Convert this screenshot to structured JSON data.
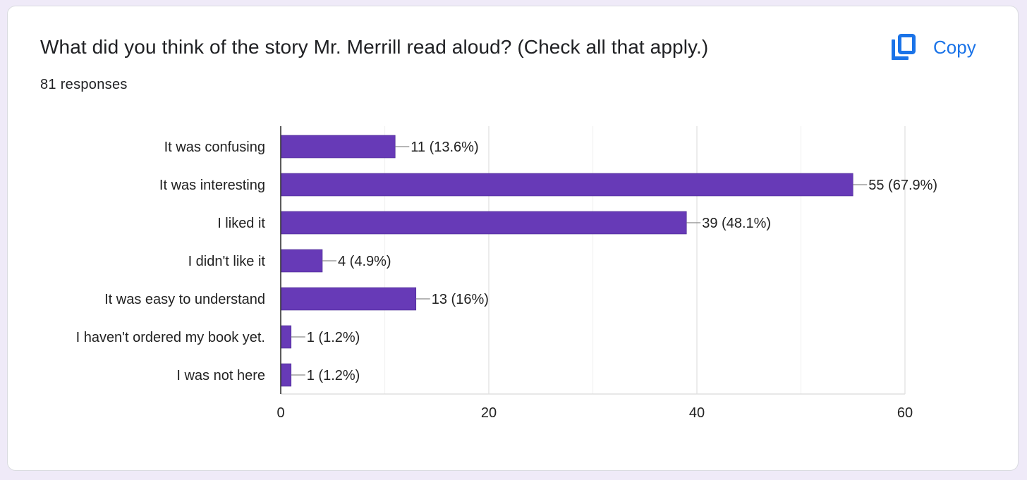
{
  "card": {
    "title": "What did you think of the story Mr. Merrill read aloud? (Check all that apply.)",
    "responses_label": "81 responses",
    "copy_label": "Copy"
  },
  "colors": {
    "bar": "#673ab7",
    "accent": "#1a73e8"
  },
  "icons": {
    "copy": "copy-icon"
  },
  "chart_data": {
    "type": "bar",
    "orientation": "horizontal",
    "categories": [
      "It was confusing",
      "It was interesting",
      "I liked it",
      "I didn't like it",
      "It was easy to understand",
      "I haven't ordered my book yet.",
      "I was not here"
    ],
    "values": [
      11,
      55,
      39,
      4,
      13,
      1,
      1
    ],
    "data_labels": [
      "11 (13.6%)",
      "55 (67.9%)",
      "39 (48.1%)",
      "4 (4.9%)",
      "13 (16%)",
      "1 (1.2%)",
      "1 (1.2%)"
    ],
    "xlim": [
      0,
      60
    ],
    "xticks": [
      0,
      20,
      40,
      60
    ],
    "grid": true
  }
}
